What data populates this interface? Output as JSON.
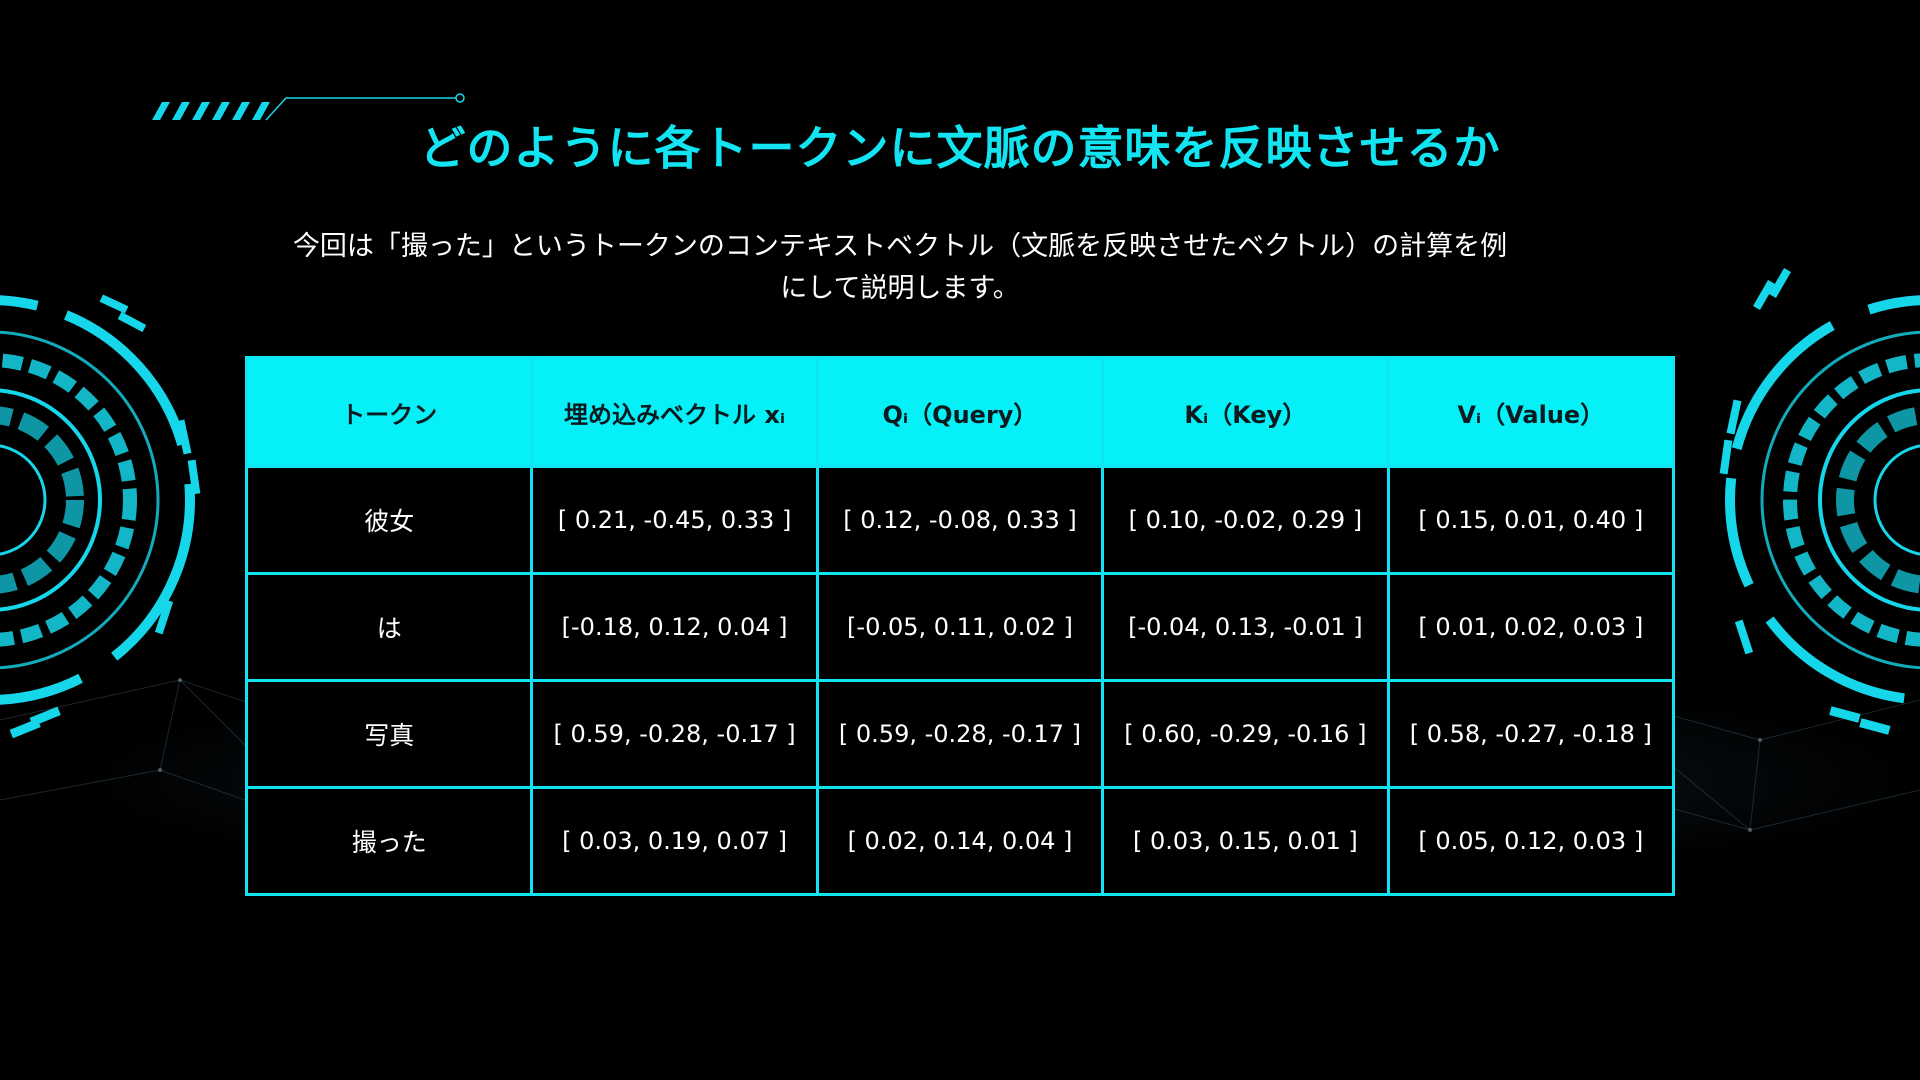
{
  "title": "どのように各トークンに文脈の意味を反映させるか",
  "subtitle": "今回は「撮った」というトークンのコンテキストベクトル（文脈を反映させたベクトル）の計算を例にして説明します。",
  "table": {
    "headers": [
      "トークン",
      "埋め込みベクトル xᵢ",
      "Qᵢ（Query）",
      "Kᵢ（Key）",
      "Vᵢ（Value）"
    ],
    "rows": [
      [
        "彼女",
        "[ 0.21, -0.45,  0.33 ]",
        "[ 0.12, -0.08,  0.33 ]",
        "[ 0.10, -0.02,  0.29 ]",
        "[ 0.15,  0.01,  0.40 ]"
      ],
      [
        "は",
        "[-0.18,  0.12,  0.04 ]",
        "[-0.05,  0.11,  0.02 ]",
        "[-0.04,  0.13, -0.01 ]",
        "[ 0.01,  0.02,  0.03 ]"
      ],
      [
        "写真",
        "[ 0.59, -0.28, -0.17 ]",
        "[ 0.59, -0.28, -0.17 ]",
        "[ 0.60, -0.29, -0.16 ]",
        "[ 0.58, -0.27, -0.18 ]"
      ],
      [
        "撮った",
        "[ 0.03,  0.19,  0.07 ]",
        "[ 0.02,  0.14,  0.04 ]",
        "[ 0.03,  0.15,  0.01 ]",
        "[ 0.05,  0.12,  0.03 ]"
      ]
    ]
  },
  "colors": {
    "accent": "#12e4f2",
    "header_fill": "#06f0f8",
    "background": "#000000"
  }
}
